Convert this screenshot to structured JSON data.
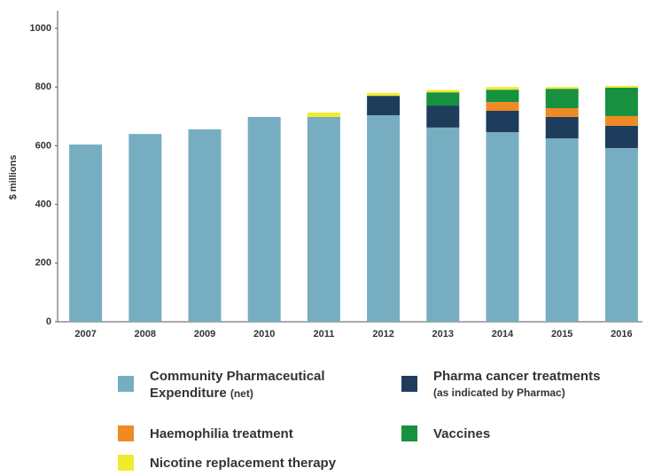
{
  "chart_data": {
    "type": "stacked_bar",
    "y_label": "$ millions",
    "categories": [
      "2007",
      "2008",
      "2009",
      "2010",
      "2011",
      "2012",
      "2013",
      "2014",
      "2015",
      "2016"
    ],
    "series": [
      {
        "name": "Community Pharmaceutical Expenditure",
        "note": "(net)",
        "color": "#77adc0",
        "values": [
          604,
          640,
          656,
          698,
          698,
          704,
          662,
          646,
          625,
          592
        ]
      },
      {
        "name": "Pharma cancer treatments",
        "note": "(as indicated by Pharmac)",
        "color": "#1e3d5c",
        "values": [
          0,
          0,
          0,
          0,
          0,
          66,
          75,
          73,
          73,
          76
        ]
      },
      {
        "name": "Haemophilia treatment",
        "color": "#f08a24",
        "values": [
          0,
          0,
          0,
          0,
          0,
          0,
          0,
          30,
          30,
          33
        ]
      },
      {
        "name": "Vaccines",
        "color": "#17913f",
        "values": [
          0,
          0,
          0,
          0,
          0,
          0,
          45,
          42,
          66,
          97
        ]
      },
      {
        "name": "Nicotine replacement therapy",
        "color": "#f2ea2e",
        "values": [
          0,
          0,
          0,
          0,
          15,
          10,
          8,
          9,
          6,
          6
        ]
      }
    ],
    "ylim": [
      0,
      1000
    ],
    "yticks": [
      0,
      200,
      400,
      600,
      800,
      1000
    ],
    "grid": false
  }
}
